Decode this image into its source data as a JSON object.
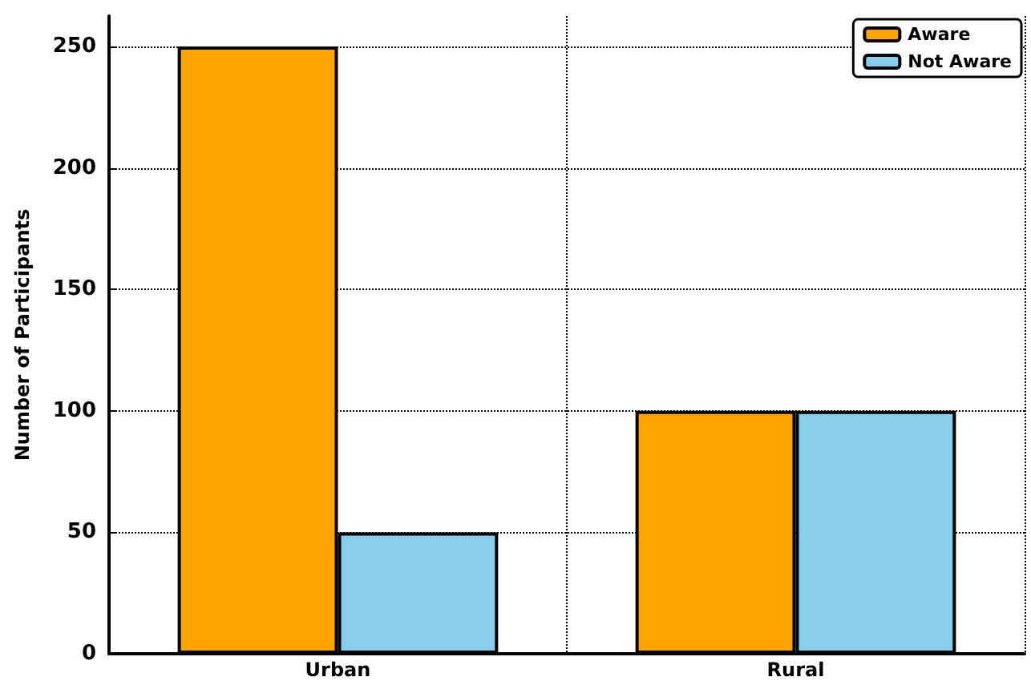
{
  "chart_data": {
    "type": "bar",
    "ylabel": "Number of Participants",
    "categories": [
      "Urban",
      "Rural"
    ],
    "series": [
      {
        "name": "Aware",
        "color": "#ffa500",
        "values": [
          250,
          100
        ]
      },
      {
        "name": "Not Aware",
        "color": "#87ceeb",
        "values": [
          50,
          100
        ]
      }
    ],
    "ylim": [
      0,
      262.5
    ],
    "yticks": [
      0,
      50,
      100,
      150,
      200,
      250
    ],
    "grid": true,
    "legend": "top right"
  }
}
